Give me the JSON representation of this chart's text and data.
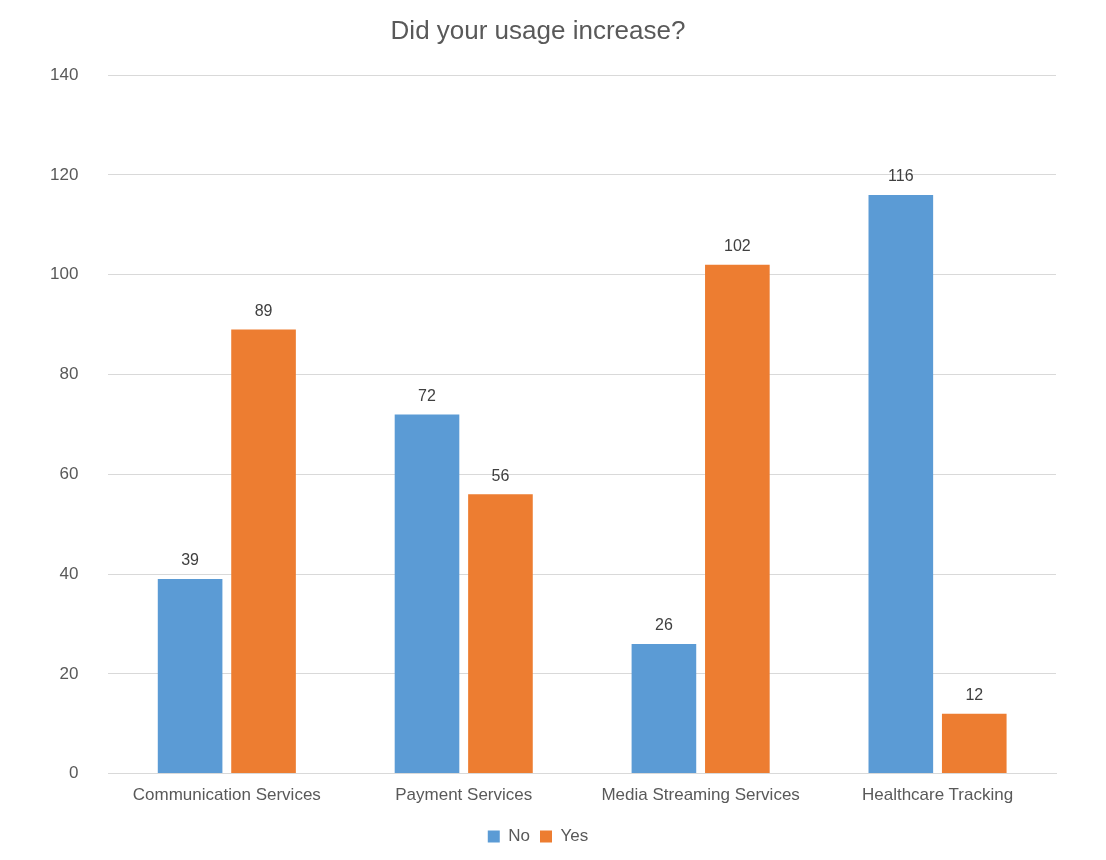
{
  "chart_data": {
    "type": "bar",
    "title": "Did your usage increase?",
    "categories": [
      "Communication Services",
      "Payment Services",
      "Media Streaming Services",
      "Healthcare Tracking"
    ],
    "series": [
      {
        "name": "No",
        "color": "#5b9bd5",
        "values": [
          39,
          72,
          26,
          116
        ]
      },
      {
        "name": "Yes",
        "color": "#ed7d31",
        "values": [
          89,
          56,
          102,
          12
        ]
      }
    ],
    "ylim": [
      0,
      140
    ],
    "yticks": [
      0,
      20,
      40,
      60,
      80,
      100,
      120,
      140
    ],
    "grid": "y",
    "legend": "bottom",
    "data_labels": true
  }
}
